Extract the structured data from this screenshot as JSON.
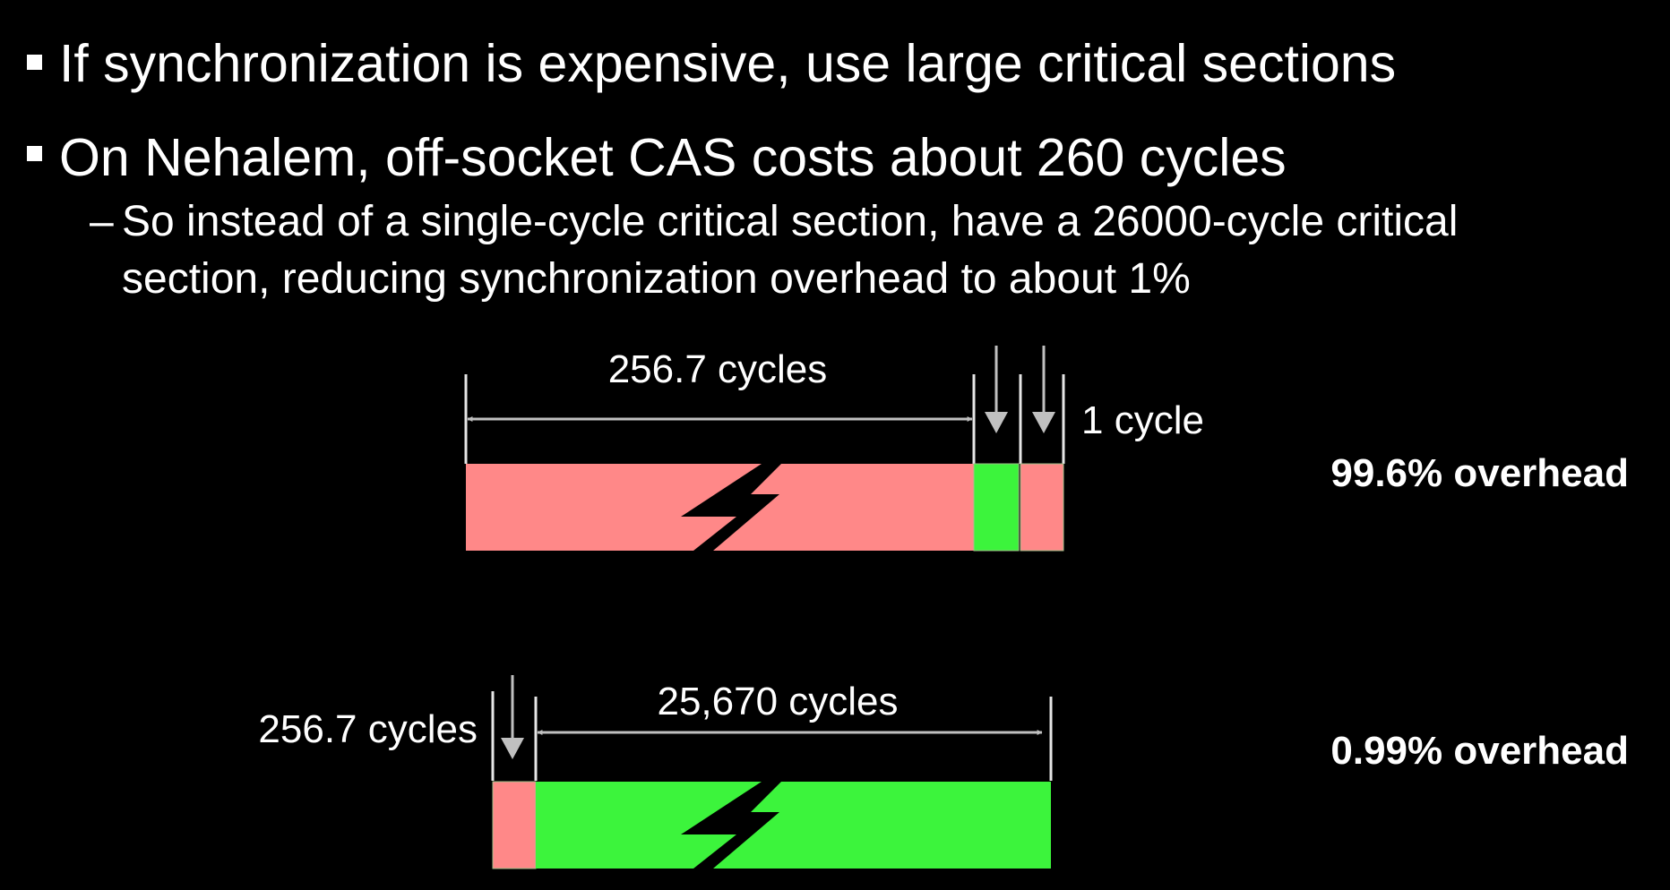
{
  "bullets": [
    {
      "text": "If synchronization is expensive, use large critical sections"
    },
    {
      "text": "On Nehalem, off-socket CAS costs about 260 cycles"
    }
  ],
  "sub_bullet": {
    "dash": "–",
    "line1": "So instead of a single-cycle critical section, have a 26000-cycle critical",
    "line2": "section, reducing synchronization overhead to about 1%"
  },
  "diagram_top": {
    "sync_label": "256.7 cycles",
    "critical_label": "1 cycle",
    "overhead": "99.6% overhead"
  },
  "diagram_bottom": {
    "sync_label": "256.7 cycles",
    "critical_label": "25,670 cycles",
    "overhead": "0.99% overhead"
  },
  "colors": {
    "background": "#000000",
    "text": "#ffffff",
    "sync_segment": "#ff8888",
    "critical_segment": "#3cf43c",
    "arrow": "#c0c0c0",
    "segment_border": "#a0c08a"
  },
  "icons": {
    "break": "lightning-break-icon",
    "arrow": "down-arrow-icon"
  }
}
